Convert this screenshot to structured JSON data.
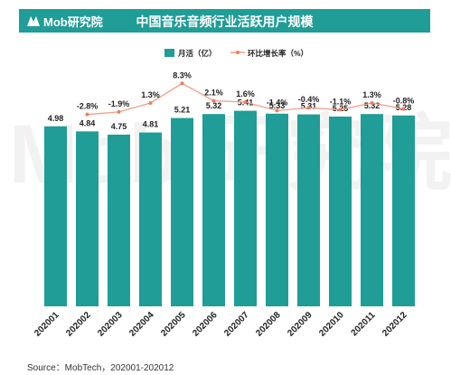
{
  "header": {
    "logo_text": "Mob研究院",
    "title": "中国音乐音频行业活跃用户规模"
  },
  "watermark": "Mob 研究院",
  "source": "Source：MobTech，202001-202012",
  "colors": {
    "header": "#1f9d96",
    "bar": "#1f9d96",
    "line": "#f0a08a",
    "line_point": "#ee7c5c"
  },
  "chart_data": {
    "type": "bar",
    "categories": [
      "202001",
      "202002",
      "202003",
      "202004",
      "202005",
      "202006",
      "202007",
      "202008",
      "202009",
      "202010",
      "202011",
      "202012"
    ],
    "series": [
      {
        "name": "月活（亿）",
        "type": "bar",
        "values": [
          4.98,
          4.84,
          4.75,
          4.81,
          5.21,
          5.32,
          5.41,
          5.33,
          5.31,
          5.25,
          5.32,
          5.28
        ]
      },
      {
        "name": "环比增长率（%）",
        "type": "line",
        "values": [
          null,
          -2.8,
          -1.9,
          1.3,
          8.3,
          2.1,
          1.6,
          -1.4,
          -0.4,
          -1.1,
          1.3,
          -0.8
        ],
        "labels": [
          "",
          "-2.8%",
          "-1.9%",
          "1.3%",
          "8.3%",
          "2.1%",
          "1.6%",
          "-1.4%",
          "-0.4%",
          "-1.1%",
          "1.3%",
          "-0.8%"
        ]
      }
    ],
    "legend_position": "top-center",
    "grid": false
  }
}
